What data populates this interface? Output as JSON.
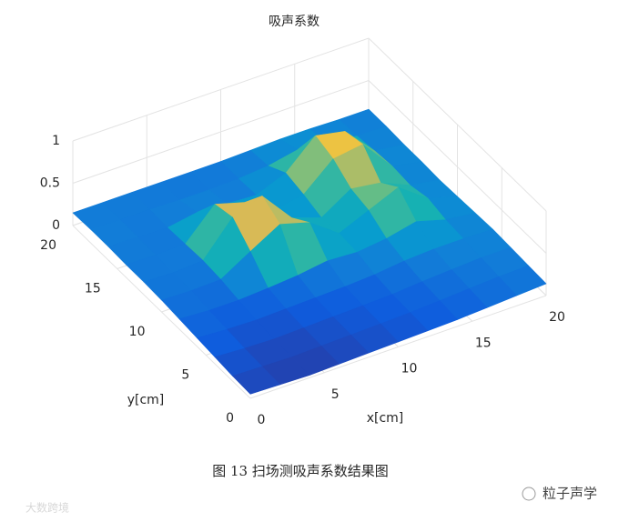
{
  "chart_data": {
    "type": "surface",
    "title": "吸声系数",
    "x": [
      0,
      2,
      4,
      6,
      8,
      10,
      12,
      14,
      16,
      18,
      20
    ],
    "y": [
      0,
      2,
      4,
      6,
      8,
      10,
      12,
      14,
      16,
      18,
      20
    ],
    "z": [
      [
        0.05,
        0.04,
        0.03,
        0.04,
        0.05,
        0.06,
        0.07,
        0.08,
        0.1,
        0.12,
        0.14
      ],
      [
        0.06,
        0.05,
        0.04,
        0.05,
        0.06,
        0.07,
        0.08,
        0.1,
        0.12,
        0.14,
        0.15
      ],
      [
        0.08,
        0.06,
        0.05,
        0.06,
        0.07,
        0.08,
        0.09,
        0.12,
        0.14,
        0.16,
        0.16
      ],
      [
        0.1,
        0.08,
        0.07,
        0.08,
        0.09,
        0.1,
        0.12,
        0.16,
        0.18,
        0.18,
        0.17
      ],
      [
        0.12,
        0.1,
        0.1,
        0.12,
        0.15,
        0.2,
        0.18,
        0.22,
        0.3,
        0.2,
        0.16
      ],
      [
        0.14,
        0.13,
        0.14,
        0.35,
        0.55,
        0.45,
        0.2,
        0.35,
        0.5,
        0.25,
        0.15
      ],
      [
        0.15,
        0.14,
        0.16,
        0.55,
        0.68,
        0.3,
        0.18,
        0.4,
        0.35,
        0.2,
        0.14
      ],
      [
        0.15,
        0.14,
        0.15,
        0.5,
        0.4,
        0.18,
        0.25,
        0.55,
        0.6,
        0.22,
        0.15
      ],
      [
        0.16,
        0.15,
        0.14,
        0.2,
        0.18,
        0.16,
        0.3,
        0.62,
        0.55,
        0.2,
        0.15
      ],
      [
        0.16,
        0.15,
        0.15,
        0.14,
        0.14,
        0.15,
        0.18,
        0.25,
        0.2,
        0.17,
        0.16
      ],
      [
        0.15,
        0.15,
        0.15,
        0.15,
        0.15,
        0.15,
        0.16,
        0.17,
        0.17,
        0.16,
        0.16
      ]
    ],
    "xlim": [
      0,
      20
    ],
    "ylim": [
      0,
      20
    ],
    "zlim": [
      0,
      1
    ],
    "xticks": [
      0,
      5,
      10,
      15,
      20
    ],
    "yticks": [
      0,
      5,
      10,
      15,
      20
    ],
    "zticks": [
      0,
      0.5,
      1
    ],
    "xlabel": "x[cm]",
    "ylabel": "y[cm]",
    "grid": true
  },
  "caption": "图 13  扫场测吸声系数结果图",
  "watermarks": [
    "粒子声学",
    "大数跨境"
  ]
}
